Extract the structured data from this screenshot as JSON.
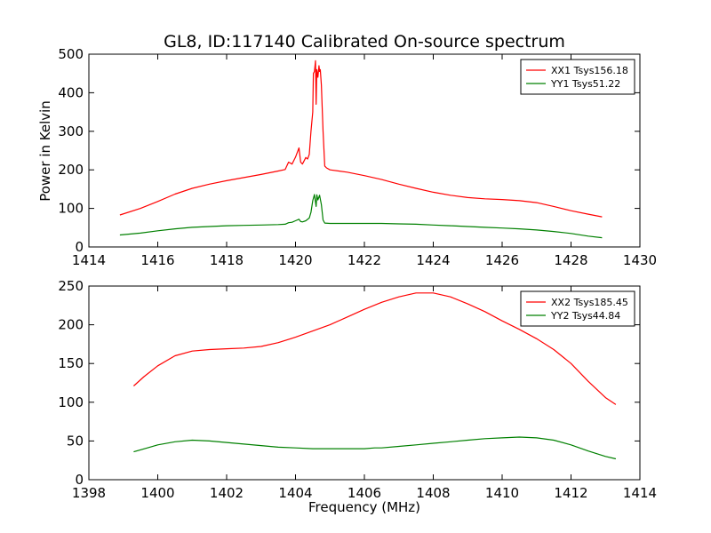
{
  "figure": {
    "title": "GL8, ID:117140 Calibrated On-source spectrum",
    "ylabel": "Power in Kelvin",
    "xlabel": "Frequency (MHz)"
  },
  "chart_data": [
    {
      "type": "line",
      "xlim": [
        1414,
        1430
      ],
      "ylim": [
        0,
        500
      ],
      "xticks": [
        1414,
        1416,
        1418,
        1420,
        1422,
        1424,
        1426,
        1428,
        1430
      ],
      "yticks": [
        0,
        100,
        200,
        300,
        400,
        500
      ],
      "grid": false,
      "legend_position": "top-right",
      "series": [
        {
          "name": "XX1 Tsys156.18",
          "color": "#ff0000",
          "points": [
            [
              1414.9,
              83
            ],
            [
              1415.5,
              100
            ],
            [
              1416.0,
              118
            ],
            [
              1416.5,
              137
            ],
            [
              1417.0,
              152
            ],
            [
              1417.5,
              163
            ],
            [
              1418.0,
              172
            ],
            [
              1418.5,
              180
            ],
            [
              1419.0,
              188
            ],
            [
              1419.5,
              197
            ],
            [
              1419.7,
              201
            ],
            [
              1419.8,
              220
            ],
            [
              1419.9,
              215
            ],
            [
              1420.0,
              233
            ],
            [
              1420.1,
              257
            ],
            [
              1420.15,
              220
            ],
            [
              1420.2,
              215
            ],
            [
              1420.3,
              232
            ],
            [
              1420.35,
              228
            ],
            [
              1420.4,
              240
            ],
            [
              1420.45,
              300
            ],
            [
              1420.5,
              350
            ],
            [
              1420.52,
              450
            ],
            [
              1420.55,
              455
            ],
            [
              1420.58,
              483
            ],
            [
              1420.6,
              370
            ],
            [
              1420.62,
              460
            ],
            [
              1420.65,
              440
            ],
            [
              1420.68,
              470
            ],
            [
              1420.7,
              455
            ],
            [
              1420.72,
              460
            ],
            [
              1420.75,
              420
            ],
            [
              1420.8,
              300
            ],
            [
              1420.85,
              210
            ],
            [
              1420.9,
              205
            ],
            [
              1421.0,
              200
            ],
            [
              1421.5,
              194
            ],
            [
              1422.0,
              185
            ],
            [
              1422.5,
              175
            ],
            [
              1423.0,
              163
            ],
            [
              1423.5,
              152
            ],
            [
              1424.0,
              142
            ],
            [
              1424.5,
              134
            ],
            [
              1425.0,
              128
            ],
            [
              1425.5,
              125
            ],
            [
              1426.0,
              123
            ],
            [
              1426.5,
              120
            ],
            [
              1427.0,
              115
            ],
            [
              1427.5,
              105
            ],
            [
              1428.0,
              94
            ],
            [
              1428.5,
              85
            ],
            [
              1428.9,
              78
            ]
          ]
        },
        {
          "name": "YY1 Tsys51.22",
          "color": "#008000",
          "points": [
            [
              1414.9,
              31
            ],
            [
              1415.5,
              36
            ],
            [
              1416.0,
              42
            ],
            [
              1416.5,
              47
            ],
            [
              1417.0,
              51
            ],
            [
              1417.5,
              53
            ],
            [
              1418.0,
              55
            ],
            [
              1418.5,
              56
            ],
            [
              1419.0,
              57
            ],
            [
              1419.5,
              58
            ],
            [
              1419.7,
              59
            ],
            [
              1419.8,
              63
            ],
            [
              1419.9,
              64
            ],
            [
              1420.0,
              68
            ],
            [
              1420.1,
              72
            ],
            [
              1420.15,
              66
            ],
            [
              1420.2,
              65
            ],
            [
              1420.3,
              68
            ],
            [
              1420.4,
              75
            ],
            [
              1420.45,
              90
            ],
            [
              1420.5,
              120
            ],
            [
              1420.55,
              136
            ],
            [
              1420.6,
              105
            ],
            [
              1420.62,
              135
            ],
            [
              1420.65,
              122
            ],
            [
              1420.7,
              134
            ],
            [
              1420.75,
              110
            ],
            [
              1420.8,
              70
            ],
            [
              1420.85,
              62
            ],
            [
              1421.0,
              61
            ],
            [
              1421.5,
              61
            ],
            [
              1422.0,
              61
            ],
            [
              1422.5,
              61
            ],
            [
              1423.0,
              60
            ],
            [
              1423.5,
              59
            ],
            [
              1424.0,
              57
            ],
            [
              1424.5,
              55
            ],
            [
              1425.0,
              53
            ],
            [
              1425.5,
              51
            ],
            [
              1426.0,
              49
            ],
            [
              1426.5,
              47
            ],
            [
              1427.0,
              44
            ],
            [
              1427.5,
              40
            ],
            [
              1428.0,
              35
            ],
            [
              1428.5,
              28
            ],
            [
              1428.9,
              24
            ]
          ]
        }
      ]
    },
    {
      "type": "line",
      "xlim": [
        1398,
        1414
      ],
      "ylim": [
        0,
        250
      ],
      "xticks": [
        1398,
        1400,
        1402,
        1404,
        1406,
        1408,
        1410,
        1412,
        1414
      ],
      "yticks": [
        0,
        50,
        100,
        150,
        200,
        250
      ],
      "grid": false,
      "legend_position": "top-right",
      "series": [
        {
          "name": "XX2 Tsys185.45",
          "color": "#ff0000",
          "points": [
            [
              1399.3,
              121
            ],
            [
              1399.6,
              133
            ],
            [
              1400.0,
              147
            ],
            [
              1400.5,
              160
            ],
            [
              1401.0,
              166
            ],
            [
              1401.5,
              168
            ],
            [
              1402.0,
              169
            ],
            [
              1402.5,
              170
            ],
            [
              1403.0,
              172
            ],
            [
              1403.5,
              177
            ],
            [
              1404.0,
              184
            ],
            [
              1404.5,
              192
            ],
            [
              1405.0,
              200
            ],
            [
              1405.5,
              210
            ],
            [
              1406.0,
              220
            ],
            [
              1406.5,
              229
            ],
            [
              1407.0,
              236
            ],
            [
              1407.5,
              241
            ],
            [
              1408.0,
              241
            ],
            [
              1408.5,
              236
            ],
            [
              1409.0,
              227
            ],
            [
              1409.5,
              217
            ],
            [
              1410.0,
              205
            ],
            [
              1410.5,
              194
            ],
            [
              1411.0,
              182
            ],
            [
              1411.5,
              168
            ],
            [
              1412.0,
              150
            ],
            [
              1412.5,
              127
            ],
            [
              1413.0,
              106
            ],
            [
              1413.3,
              97
            ]
          ]
        },
        {
          "name": "YY2 Tsys44.84",
          "color": "#008000",
          "points": [
            [
              1399.3,
              36
            ],
            [
              1399.7,
              41
            ],
            [
              1400.0,
              45
            ],
            [
              1400.5,
              49
            ],
            [
              1401.0,
              51
            ],
            [
              1401.5,
              50
            ],
            [
              1402.0,
              48
            ],
            [
              1402.5,
              46
            ],
            [
              1403.0,
              44
            ],
            [
              1403.5,
              42
            ],
            [
              1404.0,
              41
            ],
            [
              1404.5,
              40
            ],
            [
              1405.0,
              40
            ],
            [
              1405.5,
              40
            ],
            [
              1406.0,
              40
            ],
            [
              1406.3,
              41
            ],
            [
              1406.5,
              41
            ],
            [
              1407.0,
              43
            ],
            [
              1407.5,
              45
            ],
            [
              1408.0,
              47
            ],
            [
              1408.5,
              49
            ],
            [
              1409.0,
              51
            ],
            [
              1409.5,
              53
            ],
            [
              1410.0,
              54
            ],
            [
              1410.5,
              55
            ],
            [
              1411.0,
              54
            ],
            [
              1411.5,
              51
            ],
            [
              1412.0,
              45
            ],
            [
              1412.5,
              37
            ],
            [
              1413.0,
              30
            ],
            [
              1413.3,
              27
            ]
          ]
        }
      ]
    }
  ]
}
